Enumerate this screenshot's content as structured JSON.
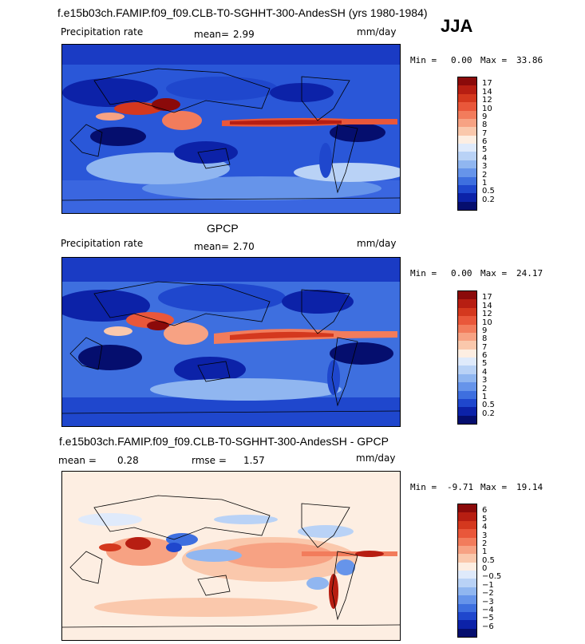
{
  "header": {
    "title": "f.e15b03ch.FAMIP.f09_f09.CLB-T0-SGHHT-300-AndesSH (yrs 1980-1984)",
    "season": "JJA"
  },
  "panels": [
    {
      "label": "Precipitation rate",
      "mean_label": "mean=",
      "mean": "2.99",
      "units": "mm/day",
      "min_label": "Min =",
      "min": "0.00",
      "max_label": "Max =",
      "max": "33.86"
    },
    {
      "heading": "GPCP",
      "label": "Precipitation rate",
      "mean_label": "mean=",
      "mean": "2.70",
      "units": "mm/day",
      "min_label": "Min =",
      "min": "0.00",
      "max_label": "Max =",
      "max": "24.17"
    },
    {
      "heading": "f.e15b03ch.FAMIP.f09_f09.CLB-T0-SGHHT-300-AndesSH - GPCP",
      "mean_label": "mean =",
      "mean": "0.28",
      "rmse_label": "rmse =",
      "rmse": "1.57",
      "units": "mm/day",
      "min_label": "Min =",
      "min": "-9.71",
      "max_label": "Max =",
      "max": "19.14"
    }
  ],
  "colorbars": {
    "precip": {
      "ticks": [
        "17",
        "14",
        "12",
        "10",
        "9",
        "8",
        "7",
        "6",
        "5",
        "4",
        "3",
        "2",
        "1",
        "0.5",
        "0.2"
      ],
      "colors": [
        "#8b0a0a",
        "#b71e12",
        "#d4381e",
        "#e9573a",
        "#f27c5c",
        "#f7a283",
        "#fac8ac",
        "#fdeee2",
        "#dfeafb",
        "#b9d2f6",
        "#90b6f0",
        "#6694ea",
        "#3e6fdf",
        "#1f47cd",
        "#0c22a8",
        "#050e6e"
      ]
    },
    "diff": {
      "ticks": [
        "6",
        "5",
        "4",
        "3",
        "2",
        "1",
        "0.5",
        "0",
        "−0.5",
        "−1",
        "−2",
        "−3",
        "−4",
        "−5",
        "−6"
      ],
      "colors": [
        "#8b0a0a",
        "#b71e12",
        "#d4381e",
        "#e9573a",
        "#f27c5c",
        "#f7a283",
        "#fac8ac",
        "#fdeee2",
        "#dfeafb",
        "#b9d2f6",
        "#90b6f0",
        "#6694ea",
        "#3e6fdf",
        "#1f47cd",
        "#0c22a8",
        "#050e6e"
      ]
    }
  },
  "chart_data": [
    {
      "type": "heatmap",
      "title": "f.e15b03ch.FAMIP.f09_f09.CLB-T0-SGHHT-300-AndesSH (yrs 1980-1984)",
      "subtitle": "Precipitation rate",
      "units": "mm/day",
      "mean": 2.99,
      "min": 0.0,
      "max": 33.86,
      "levels": [
        0.2,
        0.5,
        1,
        2,
        3,
        4,
        5,
        6,
        7,
        8,
        9,
        10,
        12,
        14,
        17
      ],
      "features": {
        "itcz_pacific_atlantic": "high",
        "indian_monsoon_maritime_continent": "high",
        "subtropical_oceans": "low"
      }
    },
    {
      "type": "heatmap",
      "title": "GPCP",
      "subtitle": "Precipitation rate",
      "units": "mm/day",
      "mean": 2.7,
      "min": 0.0,
      "max": 24.17,
      "levels": [
        0.2,
        0.5,
        1,
        2,
        3,
        4,
        5,
        6,
        7,
        8,
        9,
        10,
        12,
        14,
        17
      ]
    },
    {
      "type": "heatmap",
      "title": "f.e15b03ch.FAMIP.f09_f09.CLB-T0-SGHHT-300-AndesSH - GPCP",
      "units": "mm/day",
      "mean": 0.28,
      "rmse": 1.57,
      "min": -9.71,
      "max": 19.14,
      "levels": [
        -6,
        -5,
        -4,
        -3,
        -2,
        -1,
        -0.5,
        0,
        0.5,
        1,
        2,
        3,
        4,
        5,
        6
      ]
    }
  ]
}
